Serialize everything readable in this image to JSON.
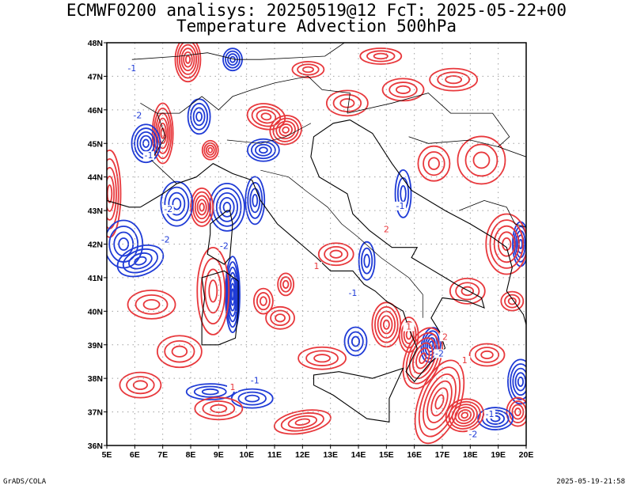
{
  "title": {
    "line1": "ECMWF0200 analisys: 20250519@12 FcT: 2025-05-22+00",
    "line2": "Temperature Advection 500hPa"
  },
  "axes": {
    "lon_range": [
      5,
      20
    ],
    "lat_range": [
      36,
      48
    ],
    "lon_ticks": [
      "5E",
      "6E",
      "7E",
      "8E",
      "9E",
      "10E",
      "11E",
      "12E",
      "13E",
      "14E",
      "15E",
      "16E",
      "17E",
      "18E",
      "19E",
      "20E"
    ],
    "lat_ticks": [
      "36N",
      "37N",
      "38N",
      "39N",
      "40N",
      "41N",
      "42N",
      "43N",
      "44N",
      "45N",
      "46N",
      "47N",
      "48N"
    ],
    "grid": "dotted"
  },
  "colors": {
    "positive": "#e8383c",
    "negative": "#1f3bd6",
    "coast": "#000000",
    "grid": "#a0a0a0"
  },
  "contour_labels": [
    {
      "text": "-1",
      "lon": 5.9,
      "lat": 47.2,
      "sign": "neg"
    },
    {
      "text": "-2",
      "lon": 6.1,
      "lat": 45.8,
      "sign": "neg"
    },
    {
      "text": "-1",
      "lon": 6.5,
      "lat": 44.6,
      "sign": "neg"
    },
    {
      "text": "-2",
      "lon": 7.2,
      "lat": 43.0,
      "sign": "neg"
    },
    {
      "text": "-2",
      "lon": 7.1,
      "lat": 42.1,
      "sign": "neg"
    },
    {
      "text": "-2",
      "lon": 9.2,
      "lat": 41.9,
      "sign": "neg"
    },
    {
      "text": "-1",
      "lon": 13.8,
      "lat": 40.5,
      "sign": "neg"
    },
    {
      "text": "-1",
      "lon": 10.3,
      "lat": 37.9,
      "sign": "neg"
    },
    {
      "text": "-1",
      "lon": 15.5,
      "lat": 43.1,
      "sign": "neg"
    },
    {
      "text": "-2",
      "lon": 16.9,
      "lat": 38.7,
      "sign": "neg"
    },
    {
      "text": "-2",
      "lon": 18.1,
      "lat": 36.3,
      "sign": "neg"
    },
    {
      "text": "-1",
      "lon": 18.7,
      "lat": 36.9,
      "sign": "neg"
    },
    {
      "text": "1",
      "lon": 12.5,
      "lat": 41.3,
      "sign": "pos"
    },
    {
      "text": "1",
      "lon": 15.8,
      "lat": 39.5,
      "sign": "pos"
    },
    {
      "text": "2",
      "lon": 17.1,
      "lat": 39.2,
      "sign": "pos"
    },
    {
      "text": "1",
      "lon": 17.8,
      "lat": 38.5,
      "sign": "pos"
    },
    {
      "text": "1",
      "lon": 9.5,
      "lat": 37.7,
      "sign": "pos"
    },
    {
      "text": "2",
      "lon": 15.0,
      "lat": 42.4,
      "sign": "pos"
    }
  ],
  "footer": {
    "left": "GrADS/COLA",
    "right": "2025-05-19-21:58"
  }
}
